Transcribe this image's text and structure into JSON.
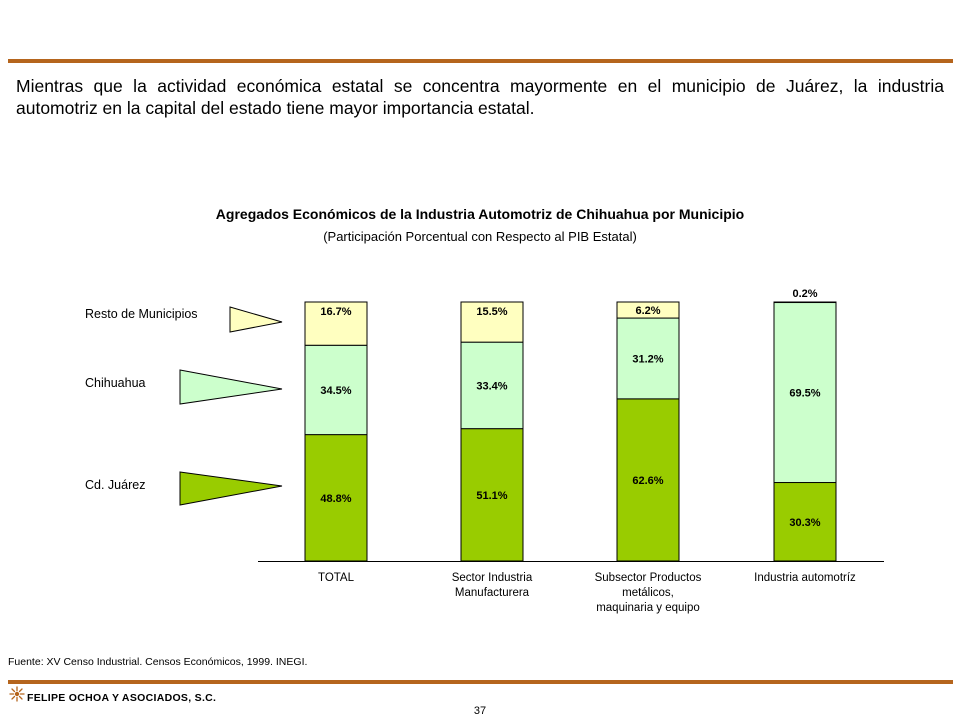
{
  "headline": "Mientras que la actividad económica estatal se concentra mayormente en  el municipio de Juárez, la industria automotriz en la capital del estado tiene mayor importancia estatal.",
  "colors": {
    "rule": "#b5651d",
    "resto": "#ffffc0",
    "chihuahua": "#ccffcc",
    "juarez": "#99cc00"
  },
  "chart_data": {
    "type": "bar",
    "stacked": true,
    "title": "Agregados Económicos de la Industria Automotriz de Chihuahua por Municipio",
    "subtitle": "(Participación Porcentual con Respecto al PIB Estatal)",
    "categories": [
      [
        "TOTAL"
      ],
      [
        "Sector Industria",
        "Manufacturera"
      ],
      [
        "Subsector Productos",
        "metálicos,",
        "maquinaria y equipo"
      ],
      [
        "Industria automotríz"
      ]
    ],
    "series": [
      {
        "name": "Cd. Juárez",
        "values": [
          48.8,
          51.1,
          62.6,
          30.3
        ],
        "labels": [
          "48.8%",
          "51.1%",
          "62.6%",
          "30.3%"
        ]
      },
      {
        "name": "Chihuahua",
        "values": [
          34.5,
          33.4,
          31.2,
          69.5
        ],
        "labels": [
          "34.5%",
          "33.4%",
          "31.2%",
          "69.5%"
        ]
      },
      {
        "name": "Resto de Municipios",
        "values": [
          16.7,
          15.5,
          6.2,
          0.2
        ],
        "labels": [
          "16.7%",
          "15.5%",
          "6.2%",
          "0.2%"
        ]
      }
    ],
    "ylim": [
      0,
      100
    ],
    "grid": false,
    "legend": "left"
  },
  "source": "Fuente: XV Censo Industrial. Censos Económicos, 1999. INEGI.",
  "company": "FELIPE OCHOA Y ASOCIADOS, S.C.",
  "page_number": "37"
}
